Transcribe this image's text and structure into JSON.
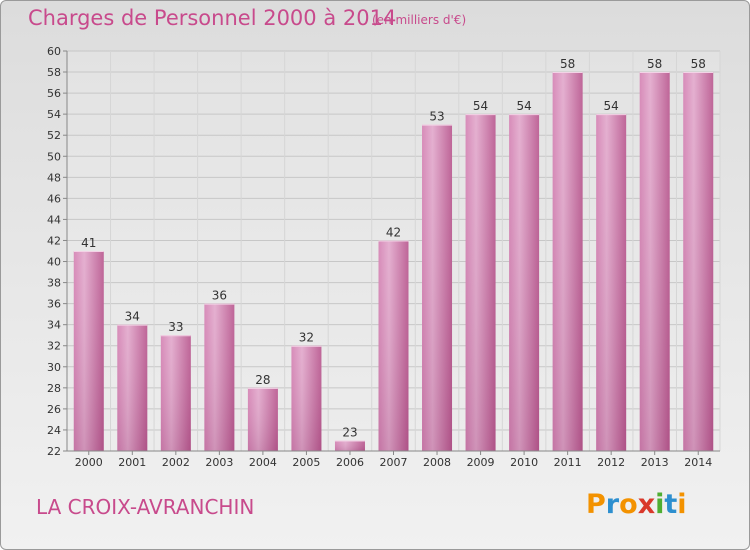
{
  "header": {
    "title": "Charges de Personnel 2000 à 2014",
    "subtitle": "(en milliers d'€)"
  },
  "footer": {
    "commune": "LA CROIX-AVRANCHIN",
    "logo_letters": [
      "P",
      "r",
      "o",
      "x",
      "i",
      "t",
      "i"
    ]
  },
  "colors": {
    "bar": "#c8669e",
    "bar_light": "#e2a9cc",
    "text_accent": "#c84a8c",
    "logo": [
      "#f39200",
      "#2d8fcf",
      "#f39200",
      "#d9382a",
      "#4fae32",
      "#2d8fcf",
      "#f39200"
    ]
  },
  "chart_data": {
    "type": "bar",
    "categories": [
      "2000",
      "2001",
      "2002",
      "2003",
      "2004",
      "2005",
      "2006",
      "2007",
      "2008",
      "2009",
      "2010",
      "2011",
      "2012",
      "2013",
      "2014"
    ],
    "values": [
      41,
      34,
      33,
      36,
      28,
      32,
      23,
      42,
      53,
      54,
      54,
      58,
      54,
      58,
      58
    ],
    "ylim": [
      22,
      60
    ],
    "yticks": [
      22,
      24,
      26,
      28,
      30,
      32,
      34,
      36,
      38,
      40,
      42,
      44,
      46,
      48,
      50,
      52,
      54,
      56,
      58,
      60
    ],
    "grid": true,
    "title": "Charges de Personnel 2000 à 2014",
    "xlabel": "",
    "ylabel": ""
  }
}
